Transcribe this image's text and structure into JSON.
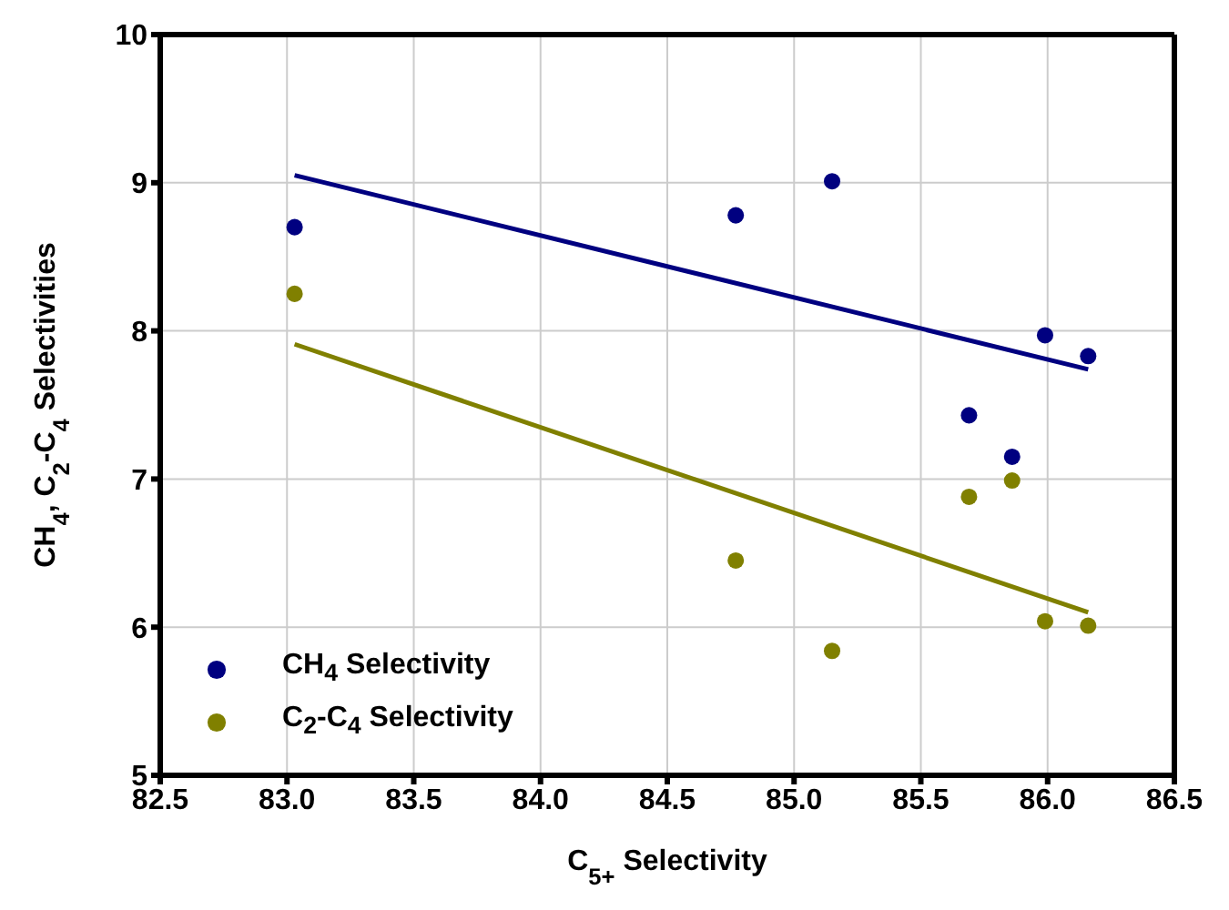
{
  "chart_data": {
    "type": "scatter",
    "xlabel": "C$_{5+}$ Selectivity",
    "ylabel": "CH$_{4}$, C$_{2}$-C$_{4}$ Selectivities",
    "xlim": [
      82.5,
      86.5
    ],
    "xticks": [
      {
        "value": 82.5,
        "label": "82.5"
      },
      {
        "value": 83,
        "label": "83.0"
      },
      {
        "value": 83.5,
        "label": "83.5"
      },
      {
        "value": 84,
        "label": "84.0"
      },
      {
        "value": 84.5,
        "label": "84.5"
      },
      {
        "value": 85,
        "label": "85.0"
      },
      {
        "value": 85.5,
        "label": "85.5"
      },
      {
        "value": 86,
        "label": "86.0"
      },
      {
        "value": 86.5,
        "label": "86.5"
      }
    ],
    "ylim": [
      5,
      10
    ],
    "yticks": [
      5,
      6,
      7,
      8,
      9,
      10
    ],
    "grid": true,
    "legend": "bottom left",
    "marker": "circle",
    "series": [
      {
        "name": "CH$_{4}$ Selectivity",
        "color": "#000080",
        "x": [
          83.03,
          84.77,
          85.15,
          85.69,
          85.86,
          85.99,
          86.16
        ],
        "values": [
          8.7,
          8.78,
          9.01,
          7.43,
          7.15,
          7.97,
          7.83
        ]
      },
      {
        "name": "C$_{2}$-C$_{4}$ Selectivity",
        "color": "#808000",
        "x": [
          83.03,
          84.77,
          85.15,
          85.69,
          85.86,
          85.99,
          86.16
        ],
        "values": [
          8.25,
          6.45,
          5.84,
          6.88,
          6.99,
          6.04,
          6.01
        ]
      },
      {
        "type": "line",
        "marker": "none",
        "color": "#000080",
        "x": [
          83.03,
          86.16
        ],
        "values": [
          9.05,
          7.74
        ]
      },
      {
        "type": "line",
        "marker": "none",
        "color": "#808000",
        "x": [
          83.03,
          86.16
        ],
        "values": [
          7.91,
          6.1
        ]
      }
    ]
  }
}
